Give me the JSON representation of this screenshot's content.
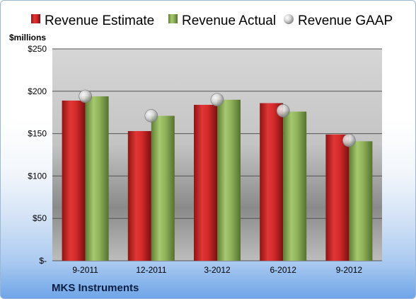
{
  "company": "MKS Instruments",
  "chart_data": {
    "type": "bar",
    "ylabel": "$millions",
    "ylim": [
      0,
      250
    ],
    "yticks": [
      0,
      50,
      100,
      150,
      200,
      250
    ],
    "ytick_labels": [
      "$-",
      "$50",
      "$100",
      "$150",
      "$200",
      "$250"
    ],
    "categories": [
      "9-2011",
      "12-2011",
      "3-2012",
      "6-2012",
      "9-2012"
    ],
    "legend_position": "top",
    "grid": true,
    "series": [
      {
        "name": "Revenue Estimate",
        "kind": "bar",
        "color": "#d42a2a",
        "values": [
          189,
          153,
          184,
          186,
          149
        ]
      },
      {
        "name": "Revenue Actual",
        "kind": "bar",
        "color": "#8fb25a",
        "values": [
          194,
          171,
          190,
          176,
          141
        ]
      },
      {
        "name": "Revenue GAAP",
        "kind": "marker",
        "color": "#c8c8c8",
        "values": [
          194,
          171,
          190,
          177,
          142
        ]
      }
    ]
  }
}
